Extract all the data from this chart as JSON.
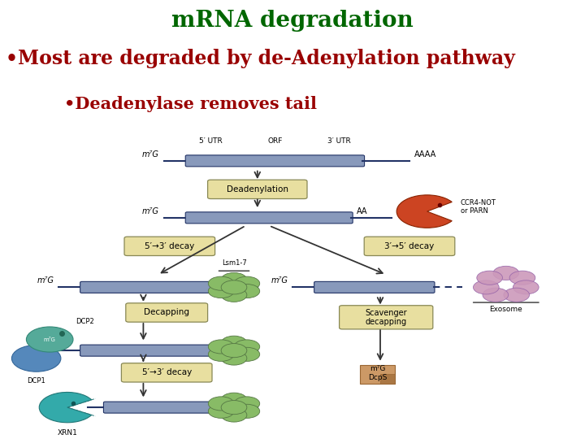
{
  "title": "mRNA degradation",
  "title_color": "#006600",
  "title_fontsize": 20,
  "bullet1_text": "•Most are degraded by de-Adenylation pathway",
  "bullet1_color": "#990000",
  "bullet1_fontsize": 17,
  "bullet2_text": "    •Deadenylase removes tail",
  "bullet2_color": "#990000",
  "bullet2_fontsize": 15,
  "background_color": "#ffffff",
  "mrna_bar_color": "#8899BB",
  "mrna_line_color": "#223366",
  "box_face": "#E8DFA0",
  "box_edge": "#888855",
  "arrow_color": "#333333",
  "text_color": "#000000",
  "lsm_color": "#88BB66",
  "lsm_edge": "#557744",
  "exo_color": "#CC99BB",
  "exo_edge": "#9966AA",
  "ccr4_color": "#CC4422",
  "xrn1_color": "#33AAAA",
  "dcp2_color": "#55AA99",
  "dcp1_color": "#5588BB",
  "dcps_color": "#CC9966"
}
